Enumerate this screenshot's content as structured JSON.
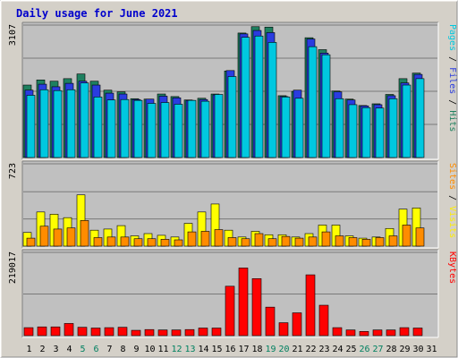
{
  "chart_data": {
    "type": "bar",
    "title": "Daily usage for June 2021",
    "categories": [
      "1",
      "2",
      "3",
      "4",
      "5",
      "6",
      "7",
      "8",
      "9",
      "10",
      "11",
      "12",
      "13",
      "14",
      "15",
      "16",
      "17",
      "18",
      "19",
      "20",
      "21",
      "22",
      "23",
      "24",
      "25",
      "26",
      "27",
      "28",
      "29",
      "30",
      "31"
    ],
    "weekend_days": [
      "5",
      "6",
      "12",
      "13",
      "19",
      "20",
      "26",
      "27"
    ],
    "panels": [
      {
        "id": "top",
        "ymax_label": "3107",
        "ymax": 3107,
        "side_label": [
          {
            "text": "Pages",
            "color": "#00c8e0"
          },
          {
            "text": " / ",
            "color": "#000000"
          },
          {
            "text": "Files",
            "color": "#2a3ce0"
          },
          {
            "text": " / ",
            "color": "#000000"
          },
          {
            "text": "Hits",
            "color": "#1e8060"
          }
        ],
        "series": [
          {
            "name": "Hits",
            "color": "#1e8060",
            "values": [
              1700,
              1820,
              1790,
              1850,
              1960,
              1790,
              1580,
              1540,
              1380,
              1370,
              1490,
              1430,
              1350,
              1390,
              1490,
              2030,
              2920,
              3070,
              3060,
              1450,
              1550,
              2810,
              2530,
              1560,
              1370,
              1220,
              1260,
              1480,
              1850,
              1980,
              0
            ]
          },
          {
            "name": "Files",
            "color": "#2a3ce0",
            "values": [
              1580,
              1720,
              1660,
              1740,
              1790,
              1700,
              1510,
              1490,
              1360,
              1370,
              1440,
              1400,
              1340,
              1360,
              1470,
              2040,
              2900,
              2980,
              2930,
              1430,
              1580,
              2780,
              2450,
              1540,
              1350,
              1210,
              1240,
              1450,
              1750,
              1950,
              0
            ]
          },
          {
            "name": "Pages",
            "color": "#00c8e0",
            "values": [
              1460,
              1590,
              1570,
              1590,
              1750,
              1420,
              1350,
              1360,
              1340,
              1270,
              1290,
              1250,
              1340,
              1320,
              1480,
              1900,
              2820,
              2850,
              2700,
              1420,
              1390,
              2600,
              2410,
              1380,
              1240,
              1170,
              1160,
              1380,
              1700,
              1850,
              0
            ]
          }
        ]
      },
      {
        "id": "middle",
        "ymax_label": "723",
        "ymax": 723,
        "side_label": [
          {
            "text": "Sites",
            "color": "#ff8c00"
          },
          {
            "text": " / ",
            "color": "#000000"
          },
          {
            "text": "Visits",
            "color": "#ffee00"
          }
        ],
        "series": [
          {
            "name": "Visits",
            "color": "#ffff00",
            "values": [
              120,
              300,
              280,
              250,
              450,
              140,
              150,
              180,
              90,
              110,
              95,
              80,
              200,
              300,
              370,
              140,
              80,
              130,
              100,
              100,
              80,
              110,
              185,
              185,
              90,
              70,
              80,
              155,
              325,
              335,
              0
            ]
          },
          {
            "name": "Sites",
            "color": "#ff8c00",
            "values": [
              70,
              175,
              150,
              160,
              225,
              75,
              80,
              80,
              65,
              65,
              60,
              55,
              125,
              130,
              145,
              75,
              65,
              110,
              65,
              85,
              70,
              80,
              125,
              90,
              75,
              60,
              75,
              90,
              185,
              160,
              0
            ]
          }
        ]
      },
      {
        "id": "bottom",
        "ymax_label": "219017",
        "ymax": 219017,
        "side_label": [
          {
            "text": "KBytes",
            "color": "#ff0000"
          }
        ],
        "series": [
          {
            "name": "KBytes",
            "color": "#ff0000",
            "values": [
              21000,
              23000,
              23000,
              32000,
              22000,
              20000,
              21000,
              22000,
              14000,
              16000,
              15000,
              15000,
              16000,
              20000,
              20000,
              130000,
              178000,
              150000,
              75000,
              34000,
              60000,
              160000,
              80000,
              21000,
              15000,
              11000,
              15000,
              15000,
              21000,
              20000,
              0
            ]
          }
        ]
      }
    ]
  }
}
